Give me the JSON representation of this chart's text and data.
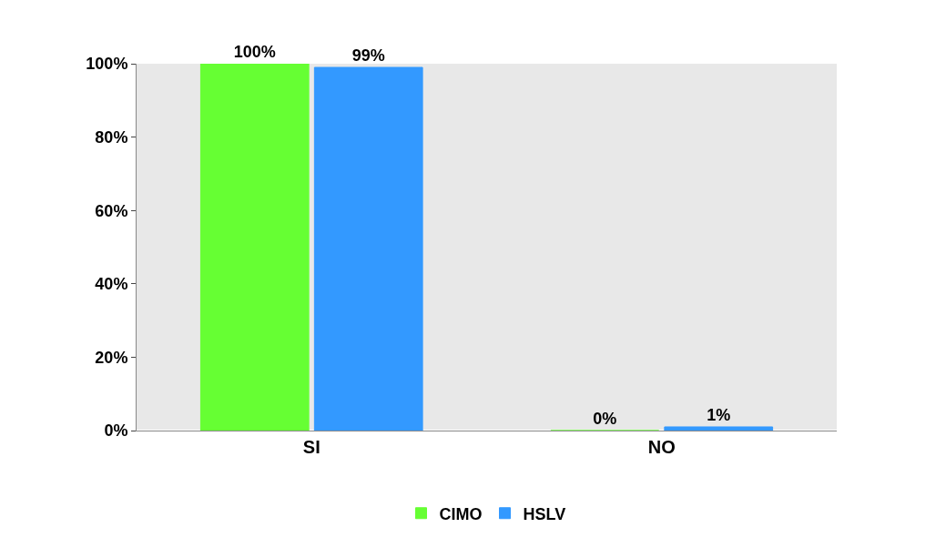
{
  "chart_data": {
    "type": "bar",
    "categories": [
      "SI",
      "NO"
    ],
    "series": [
      {
        "name": "CIMO",
        "color": "#66ff33",
        "values": [
          100,
          0
        ],
        "value_labels": [
          "100%",
          "0%"
        ]
      },
      {
        "name": "HSLV",
        "color": "#3399ff",
        "values": [
          99,
          1
        ],
        "value_labels": [
          "99%",
          "1%"
        ]
      }
    ],
    "ylim": [
      0,
      100
    ],
    "yticks": [
      {
        "value": 0,
        "label": "0%"
      },
      {
        "value": 20,
        "label": "20%"
      },
      {
        "value": 40,
        "label": "40%"
      },
      {
        "value": 60,
        "label": "60%"
      },
      {
        "value": 80,
        "label": "80%"
      },
      {
        "value": 100,
        "label": "100%"
      }
    ],
    "grid": false,
    "legend": "bottom"
  }
}
